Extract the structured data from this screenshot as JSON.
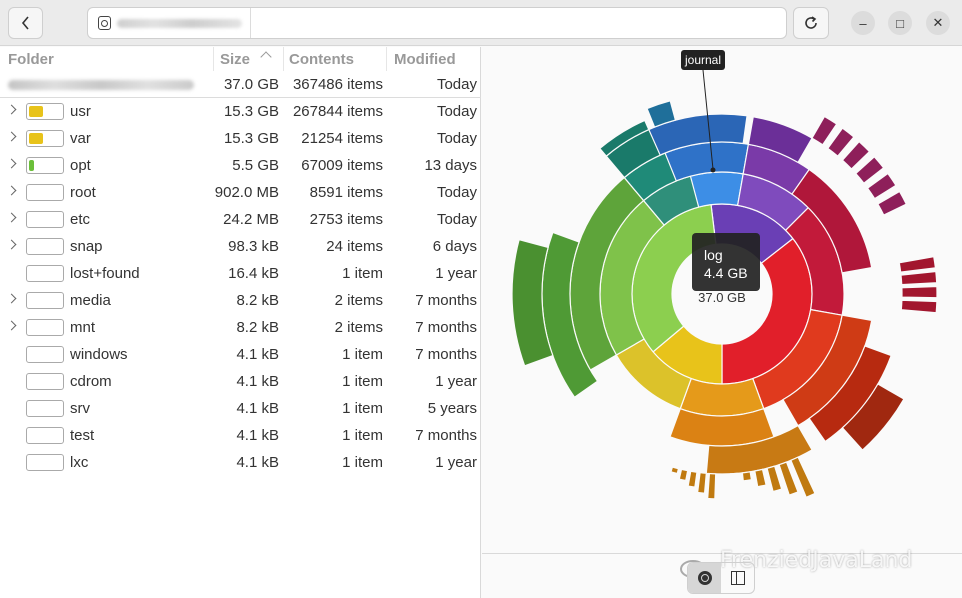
{
  "header": {
    "back_icon": "chevron-left-icon",
    "path_icon": "drive-icon",
    "refresh_icon": "refresh-icon",
    "window_controls": {
      "minimize": "–",
      "maximize": "□",
      "close": "✕"
    }
  },
  "table": {
    "columns": {
      "folder": "Folder",
      "size": "Size",
      "contents": "Contents",
      "modified": "Modified"
    },
    "root": {
      "size": "37.0 GB",
      "contents": "367486 items",
      "modified": "Today"
    },
    "rows": [
      {
        "name": "usr",
        "size": "15.3 GB",
        "contents": "267844 items",
        "modified": "Today",
        "expandable": true,
        "fill": 0.41,
        "color": "#e8c31a"
      },
      {
        "name": "var",
        "size": "15.3 GB",
        "contents": "21254 items",
        "modified": "Today",
        "expandable": true,
        "fill": 0.41,
        "color": "#e8c31a"
      },
      {
        "name": "opt",
        "size": "5.5 GB",
        "contents": "67009 items",
        "modified": "13 days",
        "expandable": true,
        "fill": 0.15,
        "color": "#6bbf3a"
      },
      {
        "name": "root",
        "size": "902.0 MB",
        "contents": "8591 items",
        "modified": "Today",
        "expandable": true,
        "fill": 0,
        "color": "#6bbf3a"
      },
      {
        "name": "etc",
        "size": "24.2 MB",
        "contents": "2753 items",
        "modified": "Today",
        "expandable": true,
        "fill": 0,
        "color": "#6bbf3a"
      },
      {
        "name": "snap",
        "size": "98.3 kB",
        "contents": "24 items",
        "modified": "6 days",
        "expandable": true,
        "fill": 0,
        "color": "#6bbf3a"
      },
      {
        "name": "lost+found",
        "size": "16.4 kB",
        "contents": "1 item",
        "modified": "1 year",
        "expandable": false,
        "fill": 0,
        "color": "#6bbf3a"
      },
      {
        "name": "media",
        "size": "8.2 kB",
        "contents": "2 items",
        "modified": "7 months",
        "expandable": true,
        "fill": 0,
        "color": "#6bbf3a"
      },
      {
        "name": "mnt",
        "size": "8.2 kB",
        "contents": "2 items",
        "modified": "7 months",
        "expandable": true,
        "fill": 0,
        "color": "#6bbf3a"
      },
      {
        "name": "windows",
        "size": "4.1 kB",
        "contents": "1 item",
        "modified": "7 months",
        "expandable": false,
        "fill": 0,
        "color": "#6bbf3a"
      },
      {
        "name": "cdrom",
        "size": "4.1 kB",
        "contents": "1 item",
        "modified": "1 year",
        "expandable": false,
        "fill": 0,
        "color": "#6bbf3a"
      },
      {
        "name": "srv",
        "size": "4.1 kB",
        "contents": "1 item",
        "modified": "5 years",
        "expandable": false,
        "fill": 0,
        "color": "#6bbf3a"
      },
      {
        "name": "test",
        "size": "4.1 kB",
        "contents": "1 item",
        "modified": "7 months",
        "expandable": false,
        "fill": 0,
        "color": "#6bbf3a"
      },
      {
        "name": "lxc",
        "size": "4.1 kB",
        "contents": "1 item",
        "modified": "1 year",
        "expandable": false,
        "fill": 0,
        "color": "#6bbf3a"
      }
    ]
  },
  "chart": {
    "center_label": "37.0 GB",
    "tooltip_name": "log",
    "tooltip_size": "4.4 GB",
    "hover_label": "journal"
  },
  "bottom": {
    "ring_view_icon": "ring-chart-icon",
    "treemap_view_icon": "treemap-icon",
    "watermark": "FrenziedJavaLand"
  }
}
